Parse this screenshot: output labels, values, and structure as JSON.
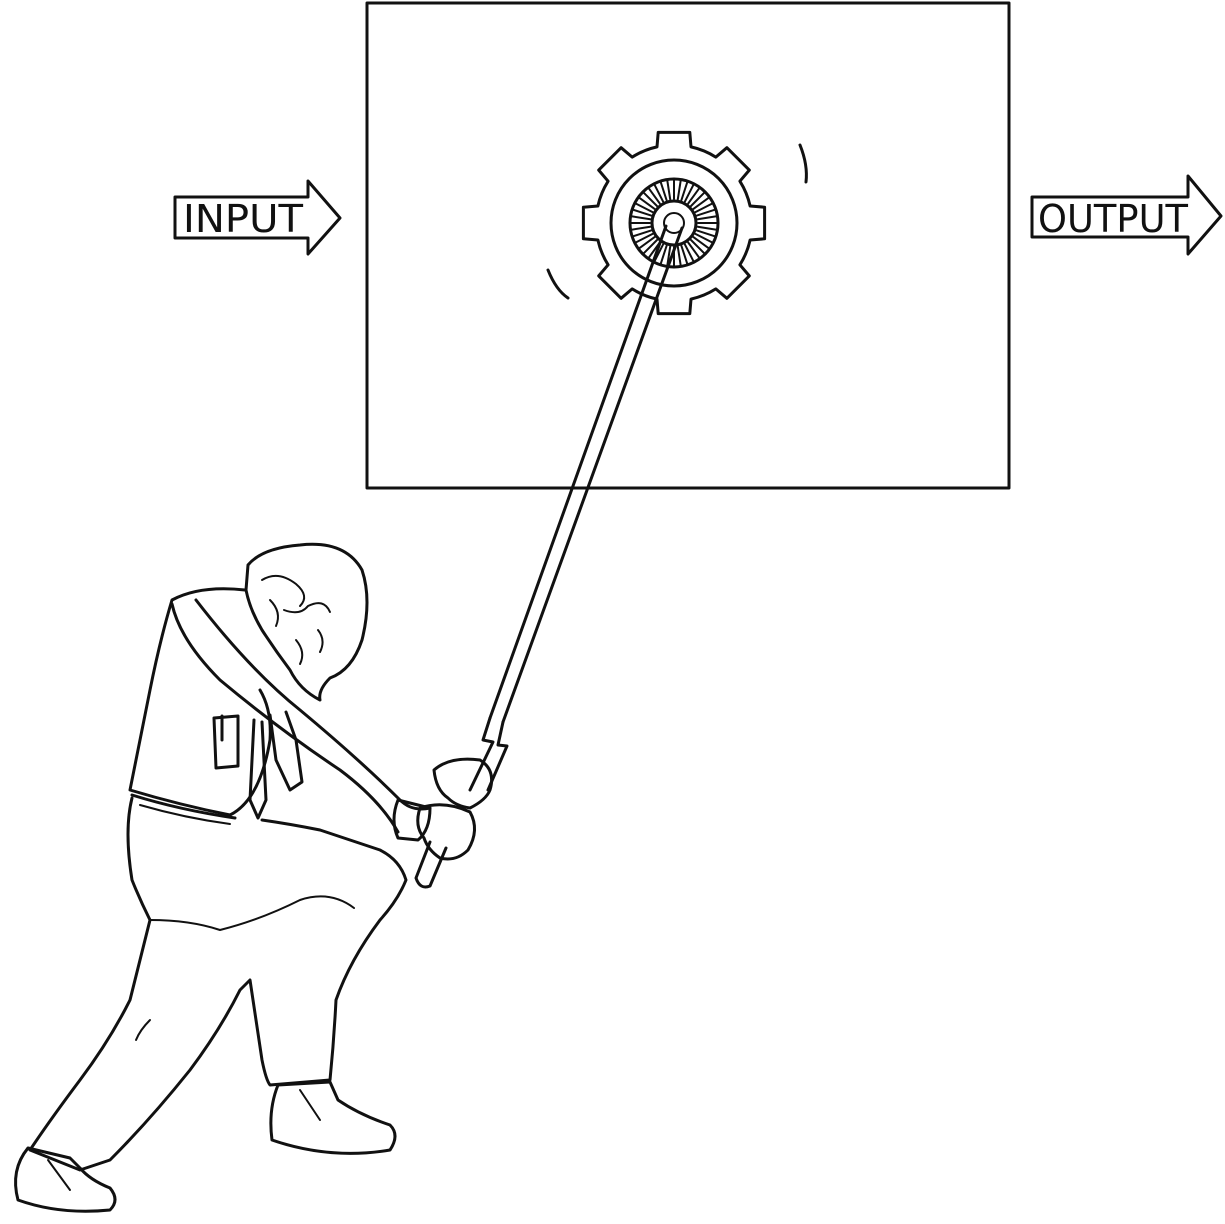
{
  "labels": {
    "input": "INPUT",
    "output": "OUTPUT"
  },
  "colors": {
    "ink": "#111111",
    "background": "#ffffff"
  }
}
